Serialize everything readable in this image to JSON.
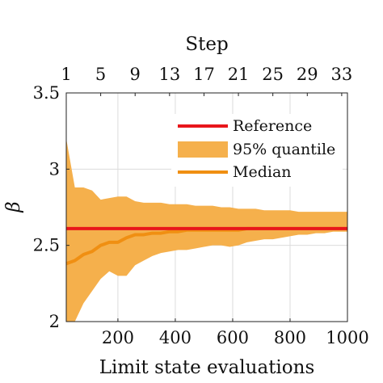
{
  "chart_data": {
    "type": "line",
    "xlabel": "Limit state evaluations",
    "ylabel": "β",
    "top_xlabel": "Step",
    "xlim": [
      20,
      1000
    ],
    "ylim": [
      2,
      3.5
    ],
    "x_ticks": [
      200,
      400,
      600,
      800,
      1000
    ],
    "x_tick_labels": [
      "200",
      "400",
      "600",
      "800",
      "1000"
    ],
    "y_ticks": [
      2,
      2.5,
      3,
      3.5
    ],
    "y_tick_labels": [
      "2",
      "2.5",
      "3",
      "3.5"
    ],
    "top_ticks": [
      1,
      5,
      9,
      13,
      17,
      21,
      25,
      29,
      33
    ],
    "top_tick_labels": [
      "1",
      "5",
      "9",
      "13",
      "17",
      "21",
      "25",
      "29",
      "33"
    ],
    "top_step_to_x": {
      "step_start": 1,
      "x_start": 20,
      "x_per_step": 30
    },
    "grid": true,
    "legend_position": "upper-right",
    "colors": {
      "reference": "#e8161b",
      "band": "#f5b04c",
      "median": "#f08f12"
    },
    "series": [
      {
        "name": "Reference",
        "kind": "line",
        "x": [
          20,
          1000
        ],
        "y": [
          2.61,
          2.61
        ]
      },
      {
        "name": "95% quantile",
        "kind": "band",
        "x": [
          20,
          50,
          80,
          110,
          140,
          170,
          200,
          230,
          260,
          290,
          320,
          350,
          380,
          410,
          440,
          470,
          500,
          530,
          560,
          590,
          620,
          650,
          680,
          710,
          740,
          770,
          800,
          830,
          860,
          890,
          920,
          950,
          980,
          1000
        ],
        "lower": [
          2.0,
          2.0,
          2.12,
          2.2,
          2.28,
          2.33,
          2.3,
          2.3,
          2.37,
          2.4,
          2.43,
          2.45,
          2.46,
          2.47,
          2.47,
          2.48,
          2.49,
          2.5,
          2.5,
          2.49,
          2.5,
          2.52,
          2.53,
          2.54,
          2.54,
          2.55,
          2.56,
          2.57,
          2.57,
          2.58,
          2.58,
          2.59,
          2.59,
          2.59
        ],
        "upper": [
          3.2,
          2.88,
          2.88,
          2.86,
          2.8,
          2.81,
          2.82,
          2.82,
          2.79,
          2.78,
          2.78,
          2.78,
          2.77,
          2.77,
          2.77,
          2.76,
          2.76,
          2.76,
          2.75,
          2.75,
          2.74,
          2.74,
          2.74,
          2.73,
          2.73,
          2.73,
          2.73,
          2.72,
          2.72,
          2.72,
          2.72,
          2.72,
          2.72,
          2.72
        ]
      },
      {
        "name": "Median",
        "kind": "line",
        "x": [
          20,
          50,
          80,
          110,
          140,
          170,
          200,
          230,
          260,
          290,
          320,
          350,
          380,
          410,
          440,
          470,
          500,
          530,
          560,
          590,
          620,
          650,
          680,
          710,
          740,
          770,
          800,
          830,
          860,
          890,
          920,
          950,
          980,
          1000
        ],
        "y": [
          2.38,
          2.4,
          2.44,
          2.46,
          2.5,
          2.52,
          2.52,
          2.55,
          2.57,
          2.57,
          2.58,
          2.58,
          2.59,
          2.59,
          2.6,
          2.6,
          2.6,
          2.6,
          2.6,
          2.6,
          2.6,
          2.61,
          2.61,
          2.61,
          2.61,
          2.61,
          2.61,
          2.61,
          2.61,
          2.61,
          2.61,
          2.61,
          2.61,
          2.61
        ]
      }
    ]
  }
}
